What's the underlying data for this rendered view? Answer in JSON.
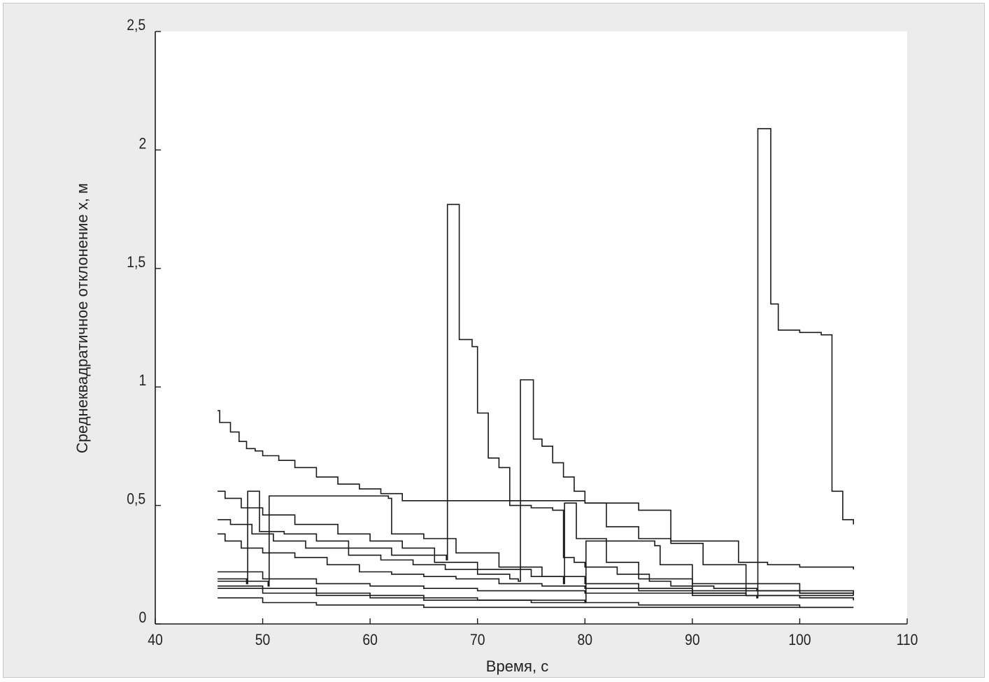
{
  "chart_data": {
    "type": "line",
    "xlabel": "Время, с",
    "ylabel": "Среднеквадратичное отклонение x, м",
    "xlim": [
      40,
      110
    ],
    "ylim": [
      0,
      2.5
    ],
    "xticks": [
      "40",
      "50",
      "60",
      "70",
      "80",
      "90",
      "100",
      "110"
    ],
    "yticks": [
      "0",
      "0,5",
      "1",
      "1,5",
      "2",
      "2,5"
    ],
    "grid": false,
    "legend": "none",
    "line_color": "#1a1a1a",
    "series": [
      {
        "x": [
          45.8,
          46.0,
          47.0,
          47.8,
          48.5,
          49.3,
          50.0,
          51.5,
          53.0,
          55.0,
          57.0,
          59.0,
          61.0,
          63.0,
          66.0,
          70.0,
          75.0,
          80.0,
          85.0,
          88.0,
          94.3,
          97.0,
          100.0,
          105.0
        ],
        "y": [
          0.9,
          0.85,
          0.81,
          0.77,
          0.74,
          0.73,
          0.71,
          0.69,
          0.66,
          0.62,
          0.59,
          0.57,
          0.55,
          0.52,
          0.52,
          0.52,
          0.52,
          0.51,
          0.48,
          0.35,
          0.26,
          0.25,
          0.24,
          0.23
        ]
      },
      {
        "x": [
          45.8,
          46.5,
          48.0,
          50.0,
          53.0,
          57.0,
          60.0,
          63.0,
          66.0,
          67.1,
          67.2,
          68.0,
          68.3,
          69.5,
          70.0,
          71.0,
          72.0,
          73.0,
          75.0,
          77.0,
          78.0,
          79.0,
          80.0,
          83.0,
          86.0,
          88.0,
          92.0,
          96.0,
          100.0,
          105.0
        ],
        "y": [
          0.56,
          0.53,
          0.49,
          0.46,
          0.42,
          0.38,
          0.35,
          0.32,
          0.29,
          0.27,
          1.77,
          1.77,
          1.2,
          1.17,
          0.89,
          0.7,
          0.66,
          0.5,
          0.49,
          0.48,
          0.28,
          0.26,
          0.24,
          0.21,
          0.18,
          0.16,
          0.15,
          0.14,
          0.13,
          0.13
        ]
      },
      {
        "x": [
          45.8,
          47.0,
          49.0,
          51.0,
          54.0,
          58.0,
          61.0,
          64.0,
          67.0,
          70.0,
          73.0,
          73.8,
          74.0,
          75.0,
          75.2,
          76.0,
          77.0,
          78.0,
          79.0,
          80.0,
          82.0,
          85.0,
          88.0,
          91.0,
          95.0,
          100.0,
          105.0
        ],
        "y": [
          0.44,
          0.42,
          0.38,
          0.35,
          0.32,
          0.29,
          0.27,
          0.25,
          0.23,
          0.21,
          0.19,
          0.18,
          1.03,
          1.03,
          0.78,
          0.75,
          0.68,
          0.62,
          0.56,
          0.51,
          0.41,
          0.36,
          0.34,
          0.25,
          0.17,
          0.14,
          0.12
        ]
      },
      {
        "x": [
          45.8,
          46.5,
          48.0,
          50.0,
          53.0,
          56.0,
          59.0,
          62.0,
          65.0,
          68.0,
          72.0,
          76.0,
          80.0,
          85.0,
          90.0,
          95.0,
          96.0,
          96.1,
          97.0,
          97.3,
          98.0,
          100.0,
          102.0,
          103.0,
          104.0,
          105.0
        ],
        "y": [
          0.38,
          0.35,
          0.32,
          0.3,
          0.28,
          0.25,
          0.22,
          0.21,
          0.2,
          0.19,
          0.17,
          0.16,
          0.15,
          0.14,
          0.13,
          0.12,
          0.11,
          2.09,
          2.09,
          1.35,
          1.24,
          1.23,
          1.22,
          0.56,
          0.44,
          0.42
        ]
      },
      {
        "x": [
          45.8,
          48.5,
          48.6,
          49.6,
          49.7,
          52.0,
          55.0,
          58.0,
          62.0,
          66.0,
          70.0,
          75.0,
          80.0,
          85.0,
          90.0,
          95.0,
          100.0,
          105.0
        ],
        "y": [
          0.19,
          0.17,
          0.56,
          0.56,
          0.39,
          0.38,
          0.35,
          0.32,
          0.29,
          0.26,
          0.23,
          0.2,
          0.17,
          0.15,
          0.13,
          0.12,
          0.11,
          0.1
        ]
      },
      {
        "x": [
          45.8,
          50.5,
          50.6,
          55.0,
          60.0,
          61.7,
          62.0,
          65.0,
          68.0,
          72.0,
          76.0,
          78.0,
          78.1,
          79.0,
          79.2,
          82.0,
          85.0,
          90.0,
          95.0,
          100.0,
          105.0
        ],
        "y": [
          0.18,
          0.16,
          0.54,
          0.54,
          0.54,
          0.53,
          0.38,
          0.36,
          0.3,
          0.24,
          0.2,
          0.17,
          0.51,
          0.51,
          0.36,
          0.26,
          0.19,
          0.14,
          0.12,
          0.11,
          0.1
        ]
      },
      {
        "x": [
          45.8,
          50.0,
          55.0,
          60.0,
          65.0,
          70.0,
          75.0,
          80.0,
          80.1,
          84.0,
          86.5,
          87.0,
          90.0,
          95.0,
          100.0,
          105.0
        ],
        "y": [
          0.16,
          0.15,
          0.13,
          0.12,
          0.11,
          0.1,
          0.1,
          0.09,
          0.35,
          0.35,
          0.33,
          0.25,
          0.17,
          0.14,
          0.13,
          0.12
        ]
      },
      {
        "x": [
          45.8,
          50.0,
          55.0,
          60.0,
          65.0,
          70.0,
          75.0,
          80.0,
          85.0,
          90.0,
          95.0,
          100.0,
          105.0
        ],
        "y": [
          0.22,
          0.19,
          0.17,
          0.16,
          0.15,
          0.14,
          0.14,
          0.13,
          0.13,
          0.12,
          0.12,
          0.12,
          0.12
        ]
      },
      {
        "x": [
          45.8,
          50.0,
          55.0,
          60.0,
          65.0,
          70.0,
          75.0,
          80.0,
          85.0,
          90.0,
          95.0,
          100.0,
          105.0
        ],
        "y": [
          0.15,
          0.13,
          0.12,
          0.11,
          0.1,
          0.1,
          0.09,
          0.09,
          0.08,
          0.08,
          0.08,
          0.07,
          0.07
        ]
      },
      {
        "x": [
          45.8,
          50.0,
          55.0,
          60.0,
          65.0,
          70.0,
          75.0,
          80.0,
          85.0,
          90.0,
          95.0,
          100.0,
          105.0
        ],
        "y": [
          0.11,
          0.09,
          0.08,
          0.08,
          0.07,
          0.07,
          0.07,
          0.07,
          0.07,
          0.07,
          0.07,
          0.07,
          0.07
        ]
      }
    ]
  }
}
